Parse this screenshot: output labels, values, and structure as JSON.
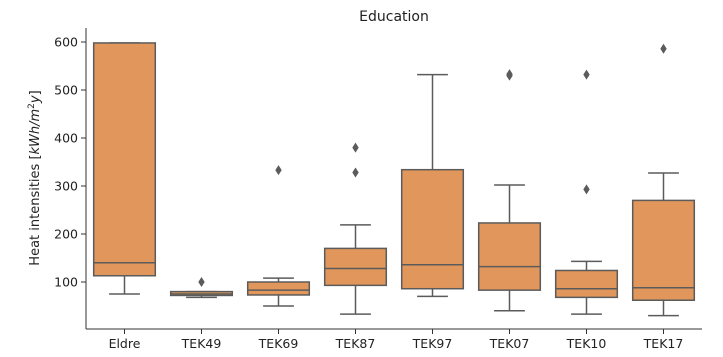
{
  "chart_data": {
    "type": "boxplot",
    "title": "Education",
    "xlabel": "",
    "ylabel_prefix": "Heat intensities [",
    "ylabel_unit_kwh": "kWh/m",
    "ylabel_unit_sup": "2",
    "ylabel_unit_y": "y",
    "ylabel_suffix": "]",
    "ylim": [
      0,
      625
    ],
    "yticks": [
      100,
      200,
      300,
      400,
      500,
      600
    ],
    "categories": [
      "Eldre",
      "TEK49",
      "TEK69",
      "TEK87",
      "TEK97",
      "TEK07",
      "TEK10",
      "TEK17"
    ],
    "boxes": [
      {
        "category": "Eldre",
        "whisker_low": 75,
        "q1": 113,
        "median": 140,
        "q3": 598,
        "whisker_high": 598,
        "outliers": []
      },
      {
        "category": "TEK49",
        "whisker_low": 68,
        "q1": 72,
        "median": 75,
        "q3": 80,
        "whisker_high": 80,
        "outliers": [
          100
        ]
      },
      {
        "category": "TEK69",
        "whisker_low": 50,
        "q1": 73,
        "median": 83,
        "q3": 100,
        "whisker_high": 108,
        "outliers": [
          333
        ]
      },
      {
        "category": "TEK87",
        "whisker_low": 33,
        "q1": 93,
        "median": 128,
        "q3": 170,
        "whisker_high": 219,
        "outliers": [
          328,
          380
        ]
      },
      {
        "category": "TEK97",
        "whisker_low": 70,
        "q1": 86,
        "median": 136,
        "q3": 334,
        "whisker_high": 532,
        "outliers": []
      },
      {
        "category": "TEK07",
        "whisker_low": 40,
        "q1": 83,
        "median": 132,
        "q3": 223,
        "whisker_high": 302,
        "outliers": [
          530,
          533
        ]
      },
      {
        "category": "TEK10",
        "whisker_low": 33,
        "q1": 68,
        "median": 86,
        "q3": 124,
        "whisker_high": 143,
        "outliers": [
          293,
          532
        ]
      },
      {
        "category": "TEK17",
        "whisker_low": 30,
        "q1": 62,
        "median": 88,
        "q3": 270,
        "whisker_high": 327,
        "outliers": [
          586
        ]
      }
    ],
    "grid": false,
    "colors": {
      "box_fill": "#e1975b",
      "line": "#5b5b5b",
      "axis": "#333333"
    }
  }
}
